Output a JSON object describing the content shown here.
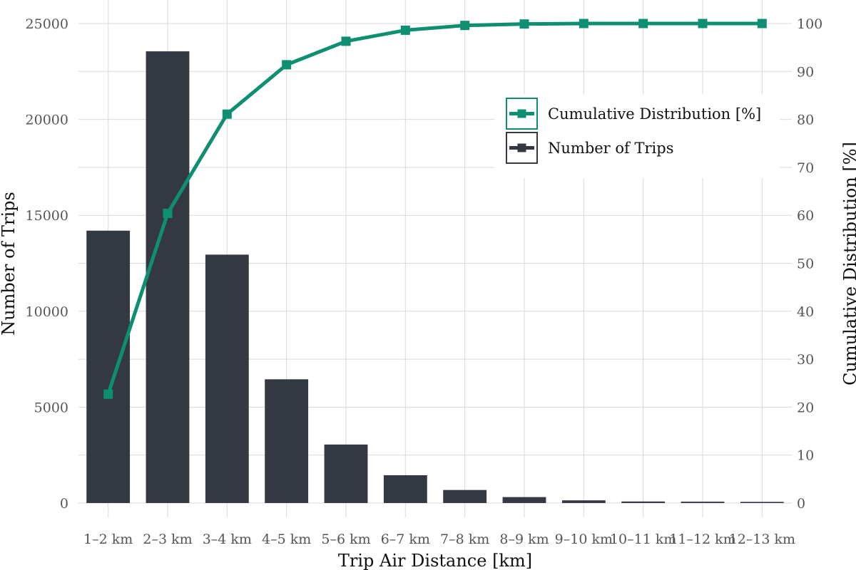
{
  "chart_data": {
    "type": "bar+line",
    "categories": [
      "1–2 km",
      "2–3 km",
      "3–4 km",
      "4–5 km",
      "5–6 km",
      "6–7 km",
      "7–8 km",
      "8–9 km",
      "9–10 km",
      "10–11 km",
      "11–12 km",
      "12–13 km"
    ],
    "bar_series": {
      "name": "Number of Trips",
      "values": [
        14200,
        23550,
        12950,
        6450,
        3050,
        1450,
        680,
        310,
        140,
        80,
        70,
        60
      ],
      "color": "#343841"
    },
    "line_series": {
      "name": "Cumulative Distribution [%]",
      "values": [
        22.7,
        60.4,
        81.1,
        91.4,
        96.3,
        98.6,
        99.6,
        99.9,
        100.0,
        100.0,
        100.0,
        100.0
      ],
      "color": "#0e8f72"
    },
    "xlabel": "Trip Air Distance [km]",
    "ylabel_left": "Number of Trips",
    "ylabel_right": "Cumulative Distribution [%]",
    "ylim_left": [
      0,
      25000
    ],
    "yticks_left": [
      0,
      5000,
      10000,
      15000,
      20000,
      25000
    ],
    "ylim_right": [
      0,
      100
    ],
    "yticks_right": [
      0,
      10,
      20,
      30,
      40,
      50,
      60,
      70,
      80,
      90,
      100
    ],
    "legend_position": "top-right",
    "grid": true
  }
}
